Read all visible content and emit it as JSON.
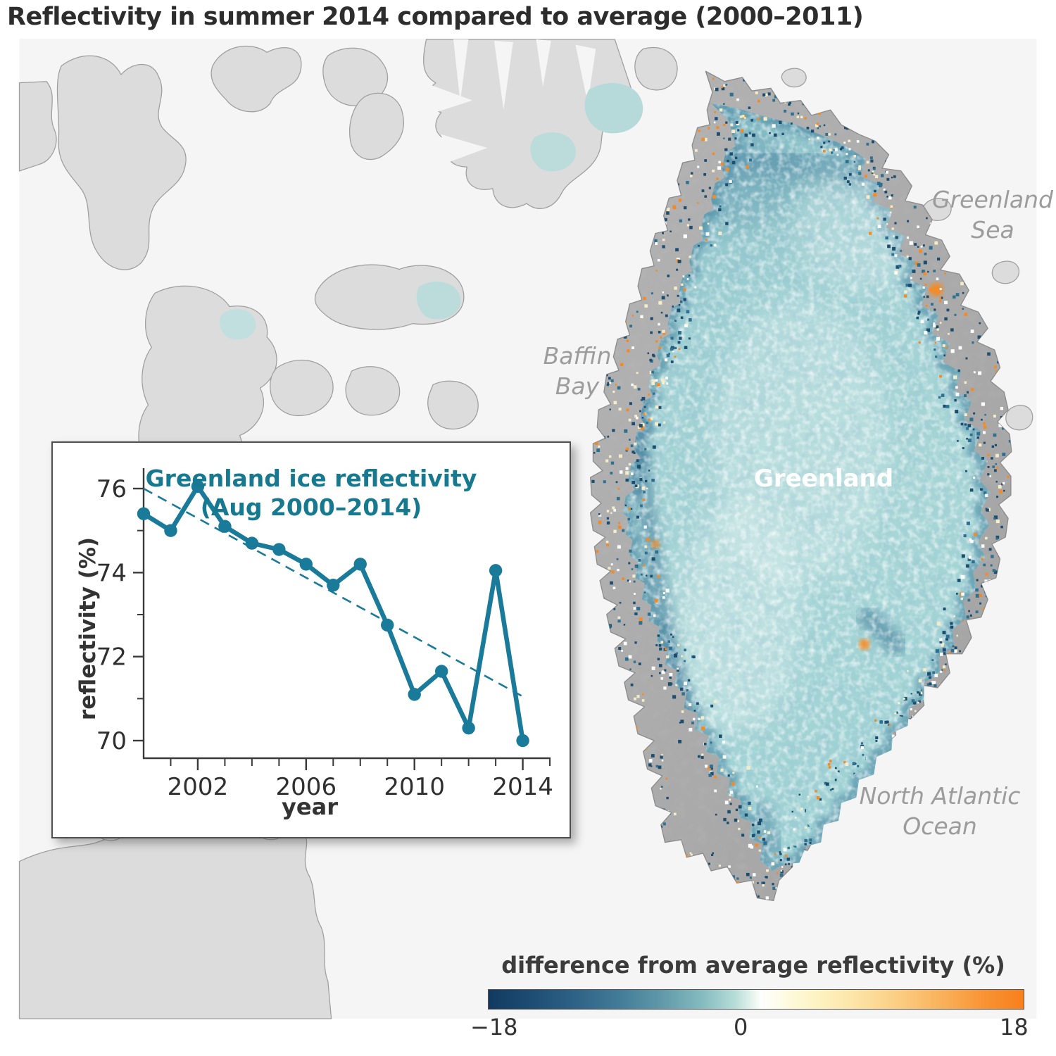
{
  "page_title": "Reflectivity in summer 2014 compared to average (2000–2011)",
  "map": {
    "labels": {
      "greenland_sea": [
        "Greenland",
        "Sea"
      ],
      "baffin_bay": [
        "Baffin",
        "Bay"
      ],
      "greenland": "Greenland",
      "north_atlantic": [
        "North Atlantic",
        "Ocean"
      ]
    },
    "colors": {
      "ocean": "#f5f5f6",
      "canada_land": "#dcdcdd",
      "canada_stroke": "#9e9e9e",
      "greenland_tundra": "#ababab",
      "ice_base": "#a3d3d6",
      "ice_edge_band": "#43819d",
      "speckle_navy": "#1d4e70",
      "speckle_blue": "#2f7090",
      "speckle_white": "#ffffff",
      "speckle_cream": "#f6ecc8",
      "speckle_orange": "#f58a24"
    }
  },
  "chart_data": {
    "type": "line",
    "title": "Greenland ice reflectivity",
    "subtitle": "(Aug 2000–2014)",
    "xlabel": "year",
    "ylabel": "reflectivity (%)",
    "x": [
      2000,
      2001,
      2002,
      2003,
      2004,
      2005,
      2006,
      2007,
      2008,
      2009,
      2010,
      2011,
      2012,
      2013,
      2014
    ],
    "y": [
      75.4,
      75.0,
      76.05,
      75.1,
      74.7,
      74.55,
      74.2,
      73.7,
      74.2,
      72.75,
      71.1,
      71.65,
      70.3,
      74.05,
      70.0
    ],
    "trend": {
      "x": [
        2000,
        2014
      ],
      "y": [
        76.0,
        71.05
      ]
    },
    "xlim": [
      2000,
      2015
    ],
    "ylim": [
      69.3,
      76.5
    ],
    "xticks_major": [
      2002,
      2006,
      2010,
      2014
    ],
    "xticks_minor": [
      2001,
      2003,
      2004,
      2005,
      2007,
      2008,
      2009,
      2011,
      2012,
      2013,
      2015
    ],
    "yticks_major": [
      70,
      72,
      74,
      76
    ],
    "yticks_minor": [
      71,
      73,
      75
    ],
    "line_color": "#1a7a99",
    "axis_color": "#3a3a3a",
    "legend_position": "none",
    "grid": false
  },
  "legend": {
    "title": "difference from average reflectivity (%)",
    "min_label": "−18",
    "mid_label": "0",
    "max_label": "18"
  }
}
